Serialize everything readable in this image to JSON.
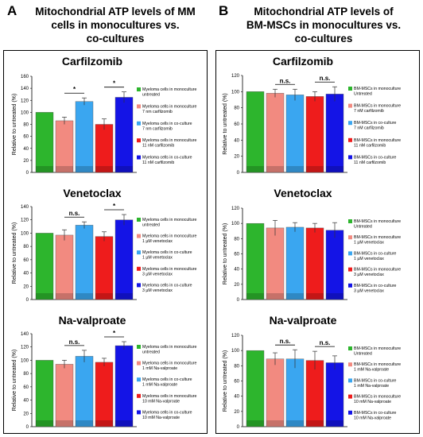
{
  "panels": [
    {
      "letter": "A",
      "title_lines": [
        "Mitochondrial ATP levels of MM",
        "cells in monocultures vs.",
        "co-cultures"
      ]
    },
    {
      "letter": "B",
      "title_lines": [
        "Mitochondrial ATP levels of",
        "BM-MSCs in monocultures vs.",
        "co-cultures"
      ]
    }
  ],
  "colors": [
    "#2db52d",
    "#f28a80",
    "#3aa6f0",
    "#ee1c1c",
    "#1414e6"
  ],
  "chart_data": [
    {
      "type": "bar",
      "title": "Carfilzomib",
      "ylabel": "Relative to untreated (%)",
      "ylim": [
        0,
        160
      ],
      "yticks": [
        0,
        20,
        40,
        60,
        80,
        100,
        120,
        140,
        160
      ],
      "values": [
        100,
        86,
        118,
        80,
        125
      ],
      "errors": [
        0,
        6,
        6,
        9,
        9
      ],
      "legend": [
        "Myeloma cells in monoculture\nuntreated",
        "Myeloma cells in monoculture\n7 nm carfilzomib",
        "Myeloma cells in co-culture\n7 nm carfilzomib",
        "Myeloma cells in monoculture\n11 nM carfilzomib",
        "Myeloma cells in co-culture\n11 nM carfilzomib"
      ],
      "annotations": [
        {
          "text": "*",
          "from": 1,
          "to": 2
        },
        {
          "text": "*",
          "from": 3,
          "to": 4
        }
      ]
    },
    {
      "type": "bar",
      "title": "Venetoclax",
      "ylabel": "Relative to untreated (%)",
      "ylim": [
        0,
        140
      ],
      "yticks": [
        0,
        20,
        40,
        60,
        80,
        100,
        120,
        140
      ],
      "values": [
        100,
        97,
        112,
        95,
        120
      ],
      "errors": [
        0,
        8,
        5,
        7,
        8
      ],
      "legend": [
        "Myeloma cells in monoculture\nuntreated",
        "Myeloma cells in monoculture\n1 µM venetoclax",
        "Myeloma cells in co-culture\n1 µM venetoclax",
        "Myeloma cells in monoculture\n3 µM venetoclax",
        "Myeloma cells in co-culture\n3 µM venetoclax"
      ],
      "annotations": [
        {
          "text": "n.s.",
          "from": 1,
          "to": 2
        },
        {
          "text": "*",
          "from": 3,
          "to": 4
        }
      ]
    },
    {
      "type": "bar",
      "title": "Na-valproate",
      "ylabel": "Relative to untreated (%)",
      "ylim": [
        0,
        140
      ],
      "yticks": [
        0,
        20,
        40,
        60,
        80,
        100,
        120,
        140
      ],
      "values": [
        100,
        94,
        106,
        97,
        122
      ],
      "errors": [
        0,
        6,
        9,
        6,
        6
      ],
      "legend": [
        "Myeloma cells in monoculture\nuntreated",
        "Myeloma cells in monoculture\n1 mM Na-valproate",
        "Myeloma cells in co-culture\n1 mM Na-valproate",
        "Myeloma cells in monoculture\n10 mM Na-valproate",
        "Myeloma cells in co-culture\n10 mM Na-valproate"
      ],
      "annotations": [
        {
          "text": "n.s.",
          "from": 1,
          "to": 2
        },
        {
          "text": "*",
          "from": 3,
          "to": 4
        }
      ]
    },
    {
      "type": "bar",
      "title": "Carfilzomib",
      "ylabel": "Relative to untreated (%)",
      "ylim": [
        0,
        120
      ],
      "yticks": [
        0,
        20,
        40,
        60,
        80,
        100,
        120
      ],
      "values": [
        100,
        98,
        96,
        94,
        97
      ],
      "errors": [
        0,
        5,
        7,
        6,
        9
      ],
      "legend": [
        "BM-MSCs in monoculture\nUntreated",
        "BM-MSCs in monoculture\n7 nM carfilzomib",
        "BM-MSCs in co-culture\n7 nM carfilzomib",
        "BM-MSCs in monoculture\n11 nM carfilzomib",
        "BM-MSCs in co-culture\n11 nM carfilzomib"
      ],
      "annotations": [
        {
          "text": "n.s.",
          "from": 1,
          "to": 2
        },
        {
          "text": "n.s.",
          "from": 3,
          "to": 4
        }
      ]
    },
    {
      "type": "bar",
      "title": "Venetoclax",
      "ylabel": "Relative to untreated (%)",
      "ylim": [
        0,
        120
      ],
      "yticks": [
        0,
        20,
        40,
        60,
        80,
        100,
        120
      ],
      "values": [
        100,
        94,
        95,
        94,
        91
      ],
      "errors": [
        0,
        10,
        6,
        6,
        10
      ],
      "legend": [
        "BM-MSCs in monoculture\nUntreated",
        "BM-MSCs in monoculture\n1 µM venetoclax",
        "BM-MSCs in co-culture\n1 µM venetoclax",
        "BM-MSCs in monoculture\n3 µM venetoclax",
        "BM-MSCs in co-culture\n3 µM venetoclax"
      ],
      "annotations": []
    },
    {
      "type": "bar",
      "title": "Na-valproate",
      "ylabel": "Relative to untreated (%)",
      "ylim": [
        0,
        120
      ],
      "yticks": [
        0,
        20,
        40,
        60,
        80,
        100,
        120
      ],
      "values": [
        100,
        89,
        89,
        87,
        84
      ],
      "errors": [
        0,
        8,
        12,
        12,
        9
      ],
      "legend": [
        "BM-MSCs in monoculture\nUntreated",
        "BM-MSCs in monoculture\n1 mM Na-valproate",
        "BM-MSCs in co-culture\n1 mM Na-valproate",
        "BM-MSCs in monoculture\n10 mM Na-valproate",
        "BM-MSCs in co-culture\n10 mM Na-valproate"
      ],
      "annotations": [
        {
          "text": "n.s.",
          "from": 1,
          "to": 2
        },
        {
          "text": "n.s.",
          "from": 3,
          "to": 4
        }
      ]
    }
  ]
}
